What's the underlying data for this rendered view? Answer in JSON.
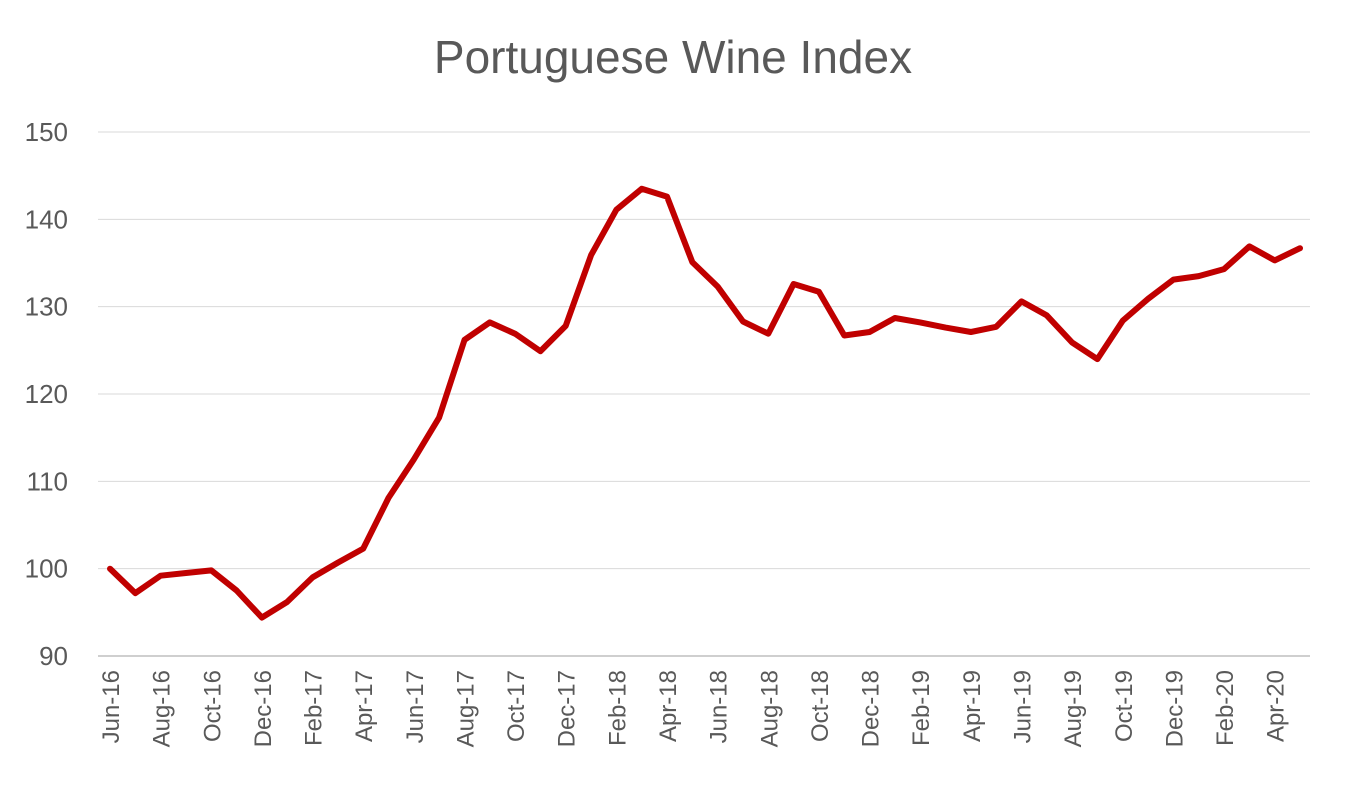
{
  "chart_data": {
    "type": "line",
    "title": "Portuguese Wine Index",
    "xlabel": "",
    "ylabel": "",
    "ylim": [
      90,
      150
    ],
    "yticks": [
      90,
      100,
      110,
      120,
      130,
      140,
      150
    ],
    "grid": true,
    "legend": "none",
    "colors": {
      "line": "#C00000",
      "grid": "#D9D9D9",
      "text": "#595959"
    },
    "x": [
      "Jun-16",
      "Jul-16",
      "Aug-16",
      "Sep-16",
      "Oct-16",
      "Nov-16",
      "Dec-16",
      "Jan-17",
      "Feb-17",
      "Mar-17",
      "Apr-17",
      "May-17",
      "Jun-17",
      "Jul-17",
      "Aug-17",
      "Sep-17",
      "Oct-17",
      "Nov-17",
      "Dec-17",
      "Jan-18",
      "Feb-18",
      "Mar-18",
      "Apr-18",
      "May-18",
      "Jun-18",
      "Jul-18",
      "Aug-18",
      "Sep-18",
      "Oct-18",
      "Nov-18",
      "Dec-18",
      "Jan-19",
      "Feb-19",
      "Mar-19",
      "Apr-19",
      "May-19",
      "Jun-19",
      "Jul-19",
      "Aug-19",
      "Sep-19",
      "Oct-19",
      "Nov-19",
      "Dec-19",
      "Jan-20",
      "Feb-20",
      "Mar-20",
      "Apr-20",
      "May-20"
    ],
    "xticks_labeled": [
      "Jun-16",
      "Aug-16",
      "Oct-16",
      "Dec-16",
      "Feb-17",
      "Apr-17",
      "Jun-17",
      "Aug-17",
      "Oct-17",
      "Dec-17",
      "Feb-18",
      "Apr-18",
      "Jun-18",
      "Aug-18",
      "Oct-18",
      "Dec-18",
      "Feb-19",
      "Apr-19",
      "Jun-19",
      "Aug-19",
      "Oct-19",
      "Dec-19",
      "Feb-20",
      "Apr-20"
    ],
    "series": [
      {
        "values": [
          100.0,
          97.2,
          99.2,
          99.5,
          99.8,
          97.5,
          94.4,
          96.2,
          99.0,
          100.7,
          102.3,
          108.1,
          112.5,
          117.3,
          126.2,
          128.2,
          126.9,
          124.9,
          127.8,
          135.9,
          141.1,
          143.5,
          142.6,
          135.1,
          132.3,
          128.3,
          126.9,
          132.6,
          131.7,
          126.7,
          127.1,
          128.7,
          128.2,
          127.6,
          127.1,
          127.7,
          130.6,
          129.0,
          125.9,
          124.0,
          128.4,
          130.9,
          133.1,
          133.5,
          134.3,
          136.9,
          135.3,
          136.7
        ]
      }
    ]
  }
}
